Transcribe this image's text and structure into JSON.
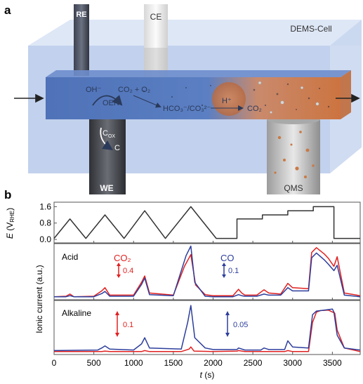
{
  "panels": {
    "a": {
      "label": "a",
      "cell_label": "DEMS-Cell",
      "electrodes": {
        "re": "RE",
        "ce": "CE",
        "we": "WE",
        "qms": "QMS"
      },
      "species": {
        "oh": "OH⁻",
        "co2_o2": "CO₂ + O₂",
        "oer": "OER",
        "hco3_co3": "HCO₃⁻/CO₃²⁻",
        "h_plus": "H⁺",
        "co2": "CO₂",
        "cox": "C",
        "cox_sub": "OX",
        "c": "C"
      }
    },
    "b": {
      "label": "b",
      "potential_label": "E",
      "potential_unit": "(V",
      "potential_sub": "RHE",
      "potential_close": ")",
      "ionic_label": "Ionic current (a.u.)",
      "x_label_italic": "t",
      "x_label_unit": " (s)",
      "acid_label": "Acid",
      "alkaline_label": "Alkaline",
      "co2_label": "CO₂",
      "co_label": "CO",
      "acid_co2_scale": "0.4",
      "acid_co_scale": "0.1",
      "alk_co2_scale": "0.1",
      "alk_co_scale": "0.05"
    }
  },
  "colors": {
    "co2": "#e02020",
    "co": "#2d3e9c",
    "potential": "#333333",
    "cell_blue": "#5a7fc4",
    "cell_orange": "#d08050"
  },
  "chart_data": {
    "type": "line",
    "x_ticks": [
      0,
      500,
      1000,
      1500,
      2000,
      2500,
      3000,
      3500
    ],
    "xlim": [
      0,
      3850
    ],
    "potential": {
      "y_ticks": [
        0.0,
        0.8,
        1.6
      ],
      "y_tick_labels": [
        "0.0",
        "0.8",
        "1.6"
      ],
      "ylim": [
        -0.1,
        1.75
      ],
      "x": [
        0,
        200,
        400,
        640,
        880,
        1140,
        1400,
        1720,
        2040,
        2300,
        2300,
        2620,
        2620,
        2940,
        2940,
        3260,
        3260,
        3520,
        3520,
        3850
      ],
      "y": [
        0.05,
        1.0,
        0.05,
        1.2,
        0.05,
        1.4,
        0.05,
        1.6,
        0.05,
        0.05,
        1.0,
        1.0,
        1.2,
        1.2,
        1.4,
        1.4,
        1.6,
        1.6,
        0.05,
        0.05
      ]
    },
    "acid": {
      "series": [
        {
          "name": "CO₂",
          "x": [
            0,
            150,
            200,
            250,
            500,
            600,
            640,
            700,
            1000,
            1100,
            1140,
            1200,
            1500,
            1640,
            1720,
            1780,
            1900,
            2000,
            2250,
            2320,
            2360,
            2400,
            2550,
            2640,
            2700,
            2850,
            2940,
            3000,
            3200,
            3240,
            3300,
            3400,
            3450,
            3520,
            3560,
            3650,
            3850
          ],
          "y": [
            0.03,
            0.04,
            0.08,
            0.03,
            0.04,
            0.14,
            0.2,
            0.06,
            0.06,
            0.3,
            0.42,
            0.1,
            0.06,
            0.6,
            0.82,
            0.25,
            0.07,
            0.05,
            0.05,
            0.17,
            0.1,
            0.06,
            0.06,
            0.16,
            0.1,
            0.08,
            0.28,
            0.2,
            0.18,
            0.86,
            0.95,
            0.83,
            0.75,
            0.6,
            0.78,
            0.1,
            0.05
          ]
        },
        {
          "name": "CO",
          "x": [
            0,
            150,
            200,
            250,
            500,
            600,
            640,
            700,
            1000,
            1100,
            1140,
            1200,
            1500,
            1660,
            1720,
            1770,
            1900,
            2000,
            2250,
            2320,
            2360,
            2400,
            2550,
            2640,
            2700,
            2850,
            2940,
            3000,
            3200,
            3240,
            3300,
            3400,
            3450,
            3520,
            3560,
            3650,
            3850
          ],
          "y": [
            0.03,
            0.03,
            0.05,
            0.03,
            0.03,
            0.09,
            0.13,
            0.04,
            0.04,
            0.26,
            0.38,
            0.07,
            0.05,
            0.8,
            0.98,
            0.3,
            0.04,
            0.03,
            0.03,
            0.07,
            0.05,
            0.04,
            0.04,
            0.08,
            0.06,
            0.06,
            0.2,
            0.14,
            0.14,
            0.76,
            0.85,
            0.72,
            0.64,
            0.52,
            0.62,
            0.06,
            0.03
          ]
        }
      ]
    },
    "alkaline": {
      "series": [
        {
          "name": "CO₂",
          "x": [
            0,
            600,
            640,
            700,
            1000,
            1100,
            1140,
            1200,
            1600,
            1700,
            1720,
            1760,
            2000,
            2300,
            2320,
            2400,
            2900,
            2940,
            3000,
            3200,
            3250,
            3300,
            3350,
            3450,
            3530,
            3560,
            3650,
            3850
          ],
          "y": [
            0.03,
            0.03,
            0.04,
            0.03,
            0.03,
            0.03,
            0.05,
            0.03,
            0.03,
            0.08,
            0.12,
            0.04,
            0.03,
            0.04,
            0.05,
            0.03,
            0.03,
            0.05,
            0.03,
            0.03,
            0.6,
            0.8,
            0.83,
            0.84,
            0.78,
            0.45,
            0.1,
            0.03
          ]
        },
        {
          "name": "CO",
          "x": [
            0,
            550,
            600,
            640,
            700,
            1000,
            1100,
            1140,
            1200,
            1600,
            1680,
            1720,
            1770,
            1900,
            2000,
            2300,
            2320,
            2400,
            2600,
            2640,
            2700,
            2900,
            2940,
            3000,
            3200,
            3250,
            3300,
            3400,
            3500,
            3520,
            3560,
            3650,
            3850
          ],
          "y": [
            0.05,
            0.06,
            0.1,
            0.14,
            0.08,
            0.06,
            0.18,
            0.3,
            0.1,
            0.08,
            0.6,
            0.93,
            0.3,
            0.1,
            0.07,
            0.07,
            0.1,
            0.06,
            0.06,
            0.1,
            0.07,
            0.07,
            0.24,
            0.12,
            0.1,
            0.75,
            0.82,
            0.84,
            0.86,
            0.8,
            0.35,
            0.1,
            0.06
          ]
        }
      ]
    }
  }
}
